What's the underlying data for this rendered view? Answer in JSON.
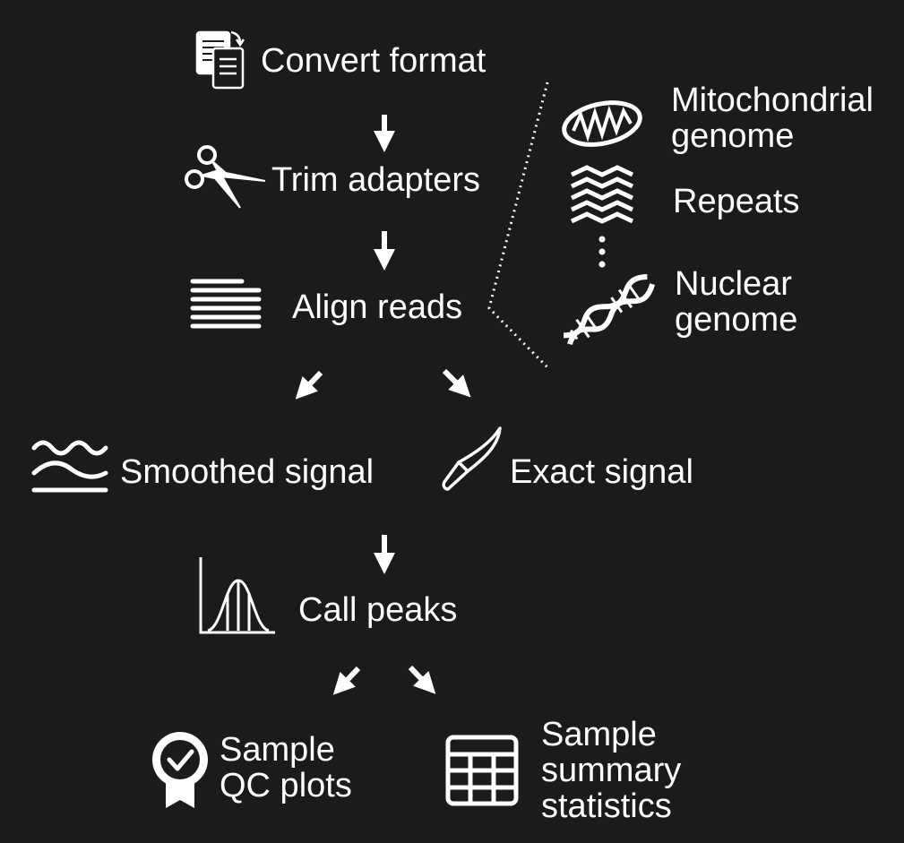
{
  "colors": {
    "background": "#1b1b1b",
    "foreground": "#ffffff"
  },
  "steps": {
    "convert": {
      "label": "Convert format",
      "icon": "document-convert-icon"
    },
    "trim": {
      "label": "Trim adapters",
      "icon": "scissors-icon"
    },
    "align": {
      "label": "Align reads",
      "icon": "aligned-reads-icon"
    },
    "smoothed": {
      "label": "Smoothed signal",
      "icon": "wave-signal-icon"
    },
    "exact": {
      "label": "Exact signal",
      "icon": "scalpel-icon"
    },
    "peaks": {
      "label": "Call peaks",
      "icon": "peak-distribution-icon"
    },
    "qc": {
      "label": "Sample\nQC plots",
      "icon": "award-ribbon-icon"
    },
    "summary": {
      "label": "Sample\nsummary\nstatistics",
      "icon": "table-grid-icon"
    }
  },
  "genome": {
    "mito": {
      "label": "Mitochondrial\ngenome",
      "icon": "mitochondrion-icon"
    },
    "repeats": {
      "label": "Repeats",
      "icon": "repeats-icon"
    },
    "nuclear": {
      "label": "Nuclear\ngenome",
      "icon": "dna-icon"
    }
  }
}
